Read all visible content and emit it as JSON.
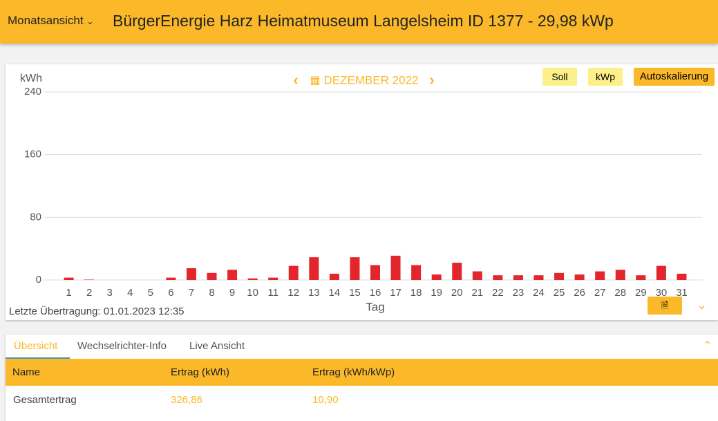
{
  "header": {
    "menu": "Monatsansicht",
    "title": "BürgerEnergie Harz Heimatmuseum Langelsheim ID 1377 - 29,98 kWp"
  },
  "buttons": [
    "Soll",
    "kWp",
    "Autoskalierung"
  ],
  "chart_data": {
    "type": "bar",
    "title": "DEZEMBER 2022",
    "y_label": "kWh",
    "x_label": "Tag",
    "categories": [
      "1",
      "2",
      "3",
      "4",
      "5",
      "6",
      "7",
      "8",
      "9",
      "10",
      "11",
      "12",
      "13",
      "14",
      "15",
      "16",
      "17",
      "18",
      "19",
      "20",
      "21",
      "22",
      "23",
      "24",
      "25",
      "26",
      "27",
      "28",
      "29",
      "30",
      "31"
    ],
    "values": [
      3,
      0.5,
      0,
      0,
      0,
      3,
      15,
      9,
      13,
      2,
      3,
      18,
      29,
      8,
      29,
      19,
      31,
      19,
      7,
      22,
      11,
      6,
      6,
      6,
      9,
      7,
      11,
      13,
      6,
      18,
      8
    ],
    "color": "#e3262b",
    "ylim": [
      0,
      240
    ],
    "yticks": [
      0,
      80,
      160,
      240
    ],
    "grid": true
  },
  "last_transfer": "Letzte Übertragung: 01.01.2023 12:35",
  "tabs": [
    "Übersicht",
    "Wechselrichter-Info",
    "Live Ansicht"
  ],
  "table": {
    "columns": [
      "Name",
      "Ertrag (kWh)",
      "Ertrag (kWh/kWp)"
    ],
    "rows": [
      [
        "Gesamtertrag",
        "326,86",
        "10,90"
      ]
    ]
  }
}
